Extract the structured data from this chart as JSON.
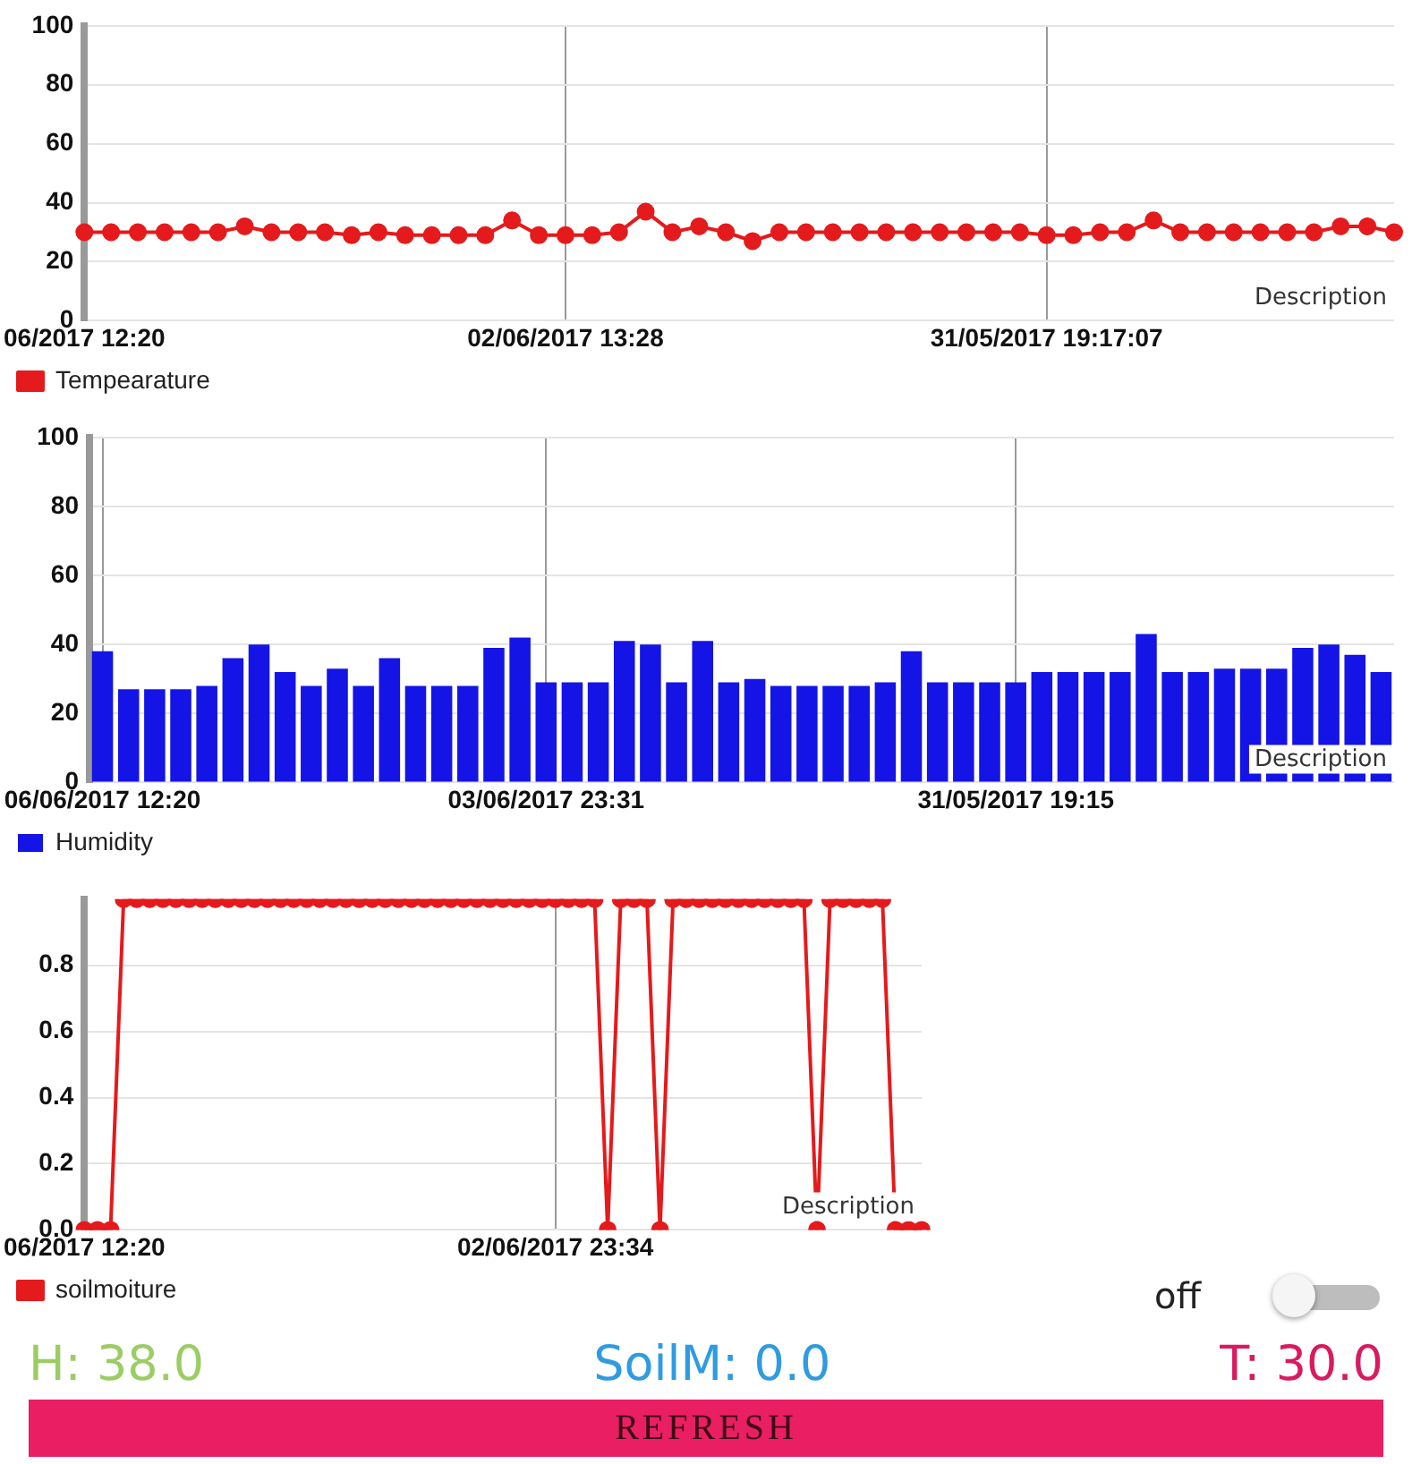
{
  "chart_data": [
    {
      "type": "line",
      "categories": [
        "06/2017 12:20",
        null,
        null,
        null,
        null,
        null,
        null,
        null,
        null,
        null,
        null,
        null,
        null,
        null,
        null,
        null,
        null,
        null,
        "02/06/2017 13:28",
        null,
        null,
        null,
        null,
        null,
        null,
        null,
        null,
        null,
        null,
        null,
        null,
        null,
        null,
        null,
        null,
        null,
        "31/05/2017 19:17:07",
        null,
        null,
        null,
        null,
        null,
        null,
        null,
        null,
        null,
        null,
        null,
        null,
        null
      ],
      "series": [
        {
          "name": "Tempearature",
          "color": "#e41a1c",
          "values": [
            30,
            30,
            30,
            30,
            30,
            30,
            32,
            30,
            30,
            30,
            29,
            30,
            29,
            29,
            29,
            29,
            34,
            29,
            29,
            29,
            30,
            37,
            30,
            32,
            30,
            27,
            30,
            30,
            30,
            30,
            30,
            30,
            30,
            30,
            30,
            30,
            29,
            29,
            30,
            30,
            34,
            30,
            30,
            30,
            30,
            30,
            30,
            32,
            32,
            30
          ]
        }
      ],
      "ylim": [
        0,
        100
      ],
      "yticks": [
        0,
        20,
        40,
        60,
        80,
        100
      ],
      "grid": true,
      "legend": "bottom left",
      "marker": "circle",
      "annotations": [
        "Description"
      ]
    },
    {
      "type": "bar",
      "categories": [
        "06/06/2017 12:20",
        null,
        null,
        null,
        null,
        null,
        null,
        null,
        null,
        null,
        null,
        null,
        null,
        null,
        null,
        null,
        null,
        "03/06/2017 23:31",
        null,
        null,
        null,
        null,
        null,
        null,
        null,
        null,
        null,
        null,
        null,
        null,
        null,
        null,
        null,
        null,
        null,
        "31/05/2017 19:15",
        null,
        null,
        null,
        null,
        null,
        null,
        null,
        null,
        null,
        null,
        null,
        null,
        null,
        null
      ],
      "series": [
        {
          "name": "Humidity",
          "color": "#1414e6",
          "values": [
            38,
            27,
            27,
            27,
            28,
            36,
            40,
            32,
            28,
            33,
            28,
            36,
            28,
            28,
            28,
            39,
            42,
            29,
            29,
            29,
            41,
            40,
            29,
            41,
            29,
            30,
            28,
            28,
            28,
            28,
            29,
            38,
            29,
            29,
            29,
            29,
            32,
            32,
            32,
            32,
            43,
            32,
            32,
            33,
            33,
            33,
            39,
            40,
            37,
            32
          ]
        }
      ],
      "ylim": [
        0,
        100
      ],
      "yticks": [
        0,
        20,
        40,
        60,
        80,
        100
      ],
      "grid": true,
      "legend": "bottom left",
      "annotations": [
        "Description"
      ]
    },
    {
      "type": "line",
      "categories": [
        "06/2017 12:20",
        null,
        null,
        null,
        null,
        null,
        null,
        null,
        null,
        null,
        null,
        null,
        null,
        null,
        null,
        null,
        null,
        null,
        null,
        null,
        null,
        null,
        null,
        null,
        null,
        null,
        null,
        null,
        null,
        null,
        null,
        null,
        null,
        null,
        null,
        null,
        "02/06/2017 23:34",
        null,
        null,
        null,
        null,
        null,
        null,
        null,
        null,
        null,
        null,
        null,
        null,
        null,
        null,
        null,
        null,
        null,
        null,
        null,
        null,
        null,
        null,
        null,
        null,
        null,
        null,
        null,
        null
      ],
      "series": [
        {
          "name": "soilmoiture",
          "color": "#e41a1c",
          "values": [
            0,
            0,
            0,
            1,
            1,
            1,
            1,
            1,
            1,
            1,
            1,
            1,
            1,
            1,
            1,
            1,
            1,
            1,
            1,
            1,
            1,
            1,
            1,
            1,
            1,
            1,
            1,
            1,
            1,
            1,
            1,
            1,
            1,
            1,
            1,
            1,
            1,
            1,
            1,
            1,
            0,
            1,
            1,
            1,
            0,
            1,
            1,
            1,
            1,
            1,
            1,
            1,
            1,
            1,
            1,
            1,
            0,
            1,
            1,
            1,
            1,
            1,
            0,
            0,
            0
          ]
        }
      ],
      "ylim": [
        0,
        1
      ],
      "yticks": [
        {
          "value": 0,
          "label": "0.0"
        },
        0.2,
        0.4,
        0.6,
        0.8
      ],
      "grid": true,
      "legend": "bottom left",
      "marker": "circle",
      "annotations": [
        "Description"
      ]
    },
    {
      "type": "other",
      "annotations": [
        "off",
        "H: 38.0",
        "SoilM: 0.0",
        "T: 30.0",
        "REFRESH"
      ]
    }
  ]
}
